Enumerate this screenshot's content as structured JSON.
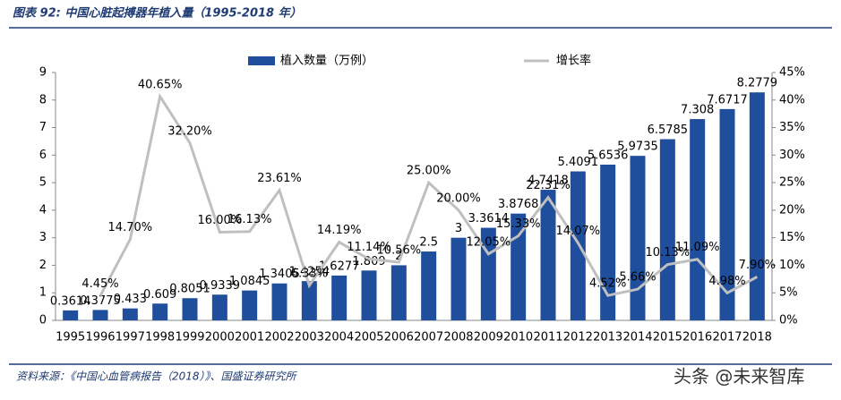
{
  "chart_data": {
    "type": "bar",
    "title": "图表 92:  中国心脏起搏器年植入量（1995-2018 年）",
    "source": "资料来源：《中国心血管病报告（2018）》、国盛证券研究所",
    "watermark": "头条 @未来智库",
    "categories": [
      "1995",
      "1996",
      "1997",
      "1998",
      "1999",
      "2000",
      "2001",
      "2002",
      "2003",
      "2004",
      "2005",
      "2006",
      "2007",
      "2008",
      "2009",
      "2010",
      "2011",
      "2012",
      "2013",
      "2014",
      "2015",
      "2016",
      "2017",
      "2018"
    ],
    "series": [
      {
        "name": "植入数量（万例）",
        "type": "bar",
        "color": "#1f4e9c",
        "values": [
          0.3614,
          0.3775,
          0.433,
          0.609,
          0.8051,
          0.9339,
          1.0845,
          1.3405,
          1.4254,
          1.6277,
          1.809,
          2,
          2.5,
          3,
          3.3614,
          3.8768,
          4.7418,
          5.4091,
          5.6536,
          5.9735,
          6.5785,
          7.308,
          7.6717,
          8.2779
        ]
      },
      {
        "name": "增长率",
        "type": "line",
        "axis": "y2",
        "color": "#bfbfbf",
        "values": [
          null,
          4.45,
          14.7,
          40.65,
          32.2,
          16.0,
          16.13,
          23.61,
          6.33,
          14.19,
          11.14,
          10.56,
          25.0,
          20.0,
          12.05,
          15.33,
          22.31,
          14.07,
          4.52,
          5.66,
          10.13,
          11.09,
          4.98,
          7.9
        ],
        "value_labels": [
          null,
          "4.45%",
          "14.70%",
          "40.65%",
          "32.20%",
          "16.00%",
          "16.13%",
          "23.61%",
          "6.33%",
          "14.19%",
          "11.14%",
          "10.56%",
          "25.00%",
          "20.00%",
          "12.05%",
          "15.33%",
          "22.31%",
          "14.07%",
          "4.52%",
          "5.66%",
          "10.13%",
          "11.09%",
          "4.98%",
          "7.90%"
        ]
      }
    ],
    "ylim": [
      0,
      9
    ],
    "yticks": [
      0,
      1,
      2,
      3,
      4,
      5,
      6,
      7,
      8,
      9
    ],
    "y2lim": [
      0,
      45
    ],
    "y2ticks": [
      {
        "value": 0,
        "label": "0%"
      },
      {
        "value": 5,
        "label": "5%"
      },
      {
        "value": 10,
        "label": "10%"
      },
      {
        "value": 15,
        "label": "15%"
      },
      {
        "value": 20,
        "label": "20%"
      },
      {
        "value": 25,
        "label": "25%"
      },
      {
        "value": 30,
        "label": "30%"
      },
      {
        "value": 35,
        "label": "35%"
      },
      {
        "value": 40,
        "label": "40%"
      },
      {
        "value": 45,
        "label": "45%"
      }
    ]
  }
}
